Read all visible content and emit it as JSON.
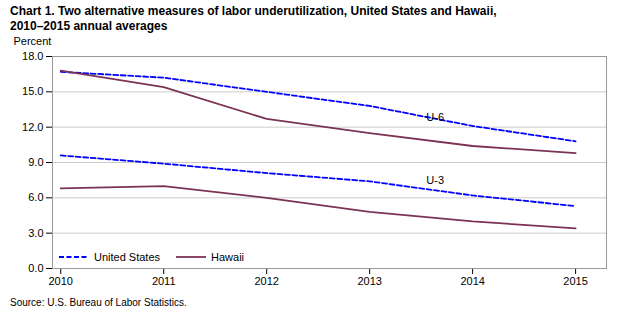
{
  "chart_data": {
    "type": "line",
    "title": "Chart 1. Two alternative measures of labor underutilization, United States and Hawaii,",
    "subtitle": "2010–2015  annual averages",
    "ylabel": "Percent",
    "source": "Source: U.S. Bureau of Labor Statistics.",
    "x": [
      2010,
      2011,
      2012,
      2013,
      2014,
      2015
    ],
    "series": [
      {
        "name": "United States",
        "color": "#0000FF",
        "line_style": "dashed",
        "values": [
          16.7,
          16.2,
          15.0,
          13.8,
          12.1,
          10.8
        ]
      },
      {
        "name": "Hawaii",
        "color": "#7B3355",
        "line_style": "solid",
        "values": [
          16.8,
          15.4,
          12.7,
          11.5,
          10.4,
          9.8
        ]
      },
      {
        "name": "United States",
        "color": "#0000FF",
        "line_style": "dashed",
        "values": [
          9.6,
          8.9,
          8.1,
          7.4,
          6.2,
          5.3
        ]
      },
      {
        "name": "Hawaii",
        "color": "#7B3355",
        "line_style": "solid",
        "values": [
          6.8,
          7.0,
          6.0,
          4.8,
          4.0,
          3.4
        ]
      }
    ],
    "annotations": [
      {
        "text": "U-6",
        "x": 2013.55,
        "y": 12.8
      },
      {
        "text": "U-3",
        "x": 2013.55,
        "y": 7.5
      }
    ],
    "xlim": [
      2009.92,
      2015.3
    ],
    "xticks": [
      2010,
      2011,
      2012,
      2013,
      2014,
      2015
    ],
    "ylim": [
      0.0,
      18.0
    ],
    "yticks": [
      {
        "value": 0.0,
        "label": "0.0"
      },
      {
        "value": 3.0,
        "label": "3.0"
      },
      {
        "value": 6.0,
        "label": "6.0"
      },
      {
        "value": 9.0,
        "label": "9.0"
      },
      {
        "value": 12.0,
        "label": "12.0"
      },
      {
        "value": 15.0,
        "label": "15.0"
      },
      {
        "value": 18.0,
        "label": "18.0"
      }
    ],
    "grid": true,
    "legend": "lower left"
  }
}
